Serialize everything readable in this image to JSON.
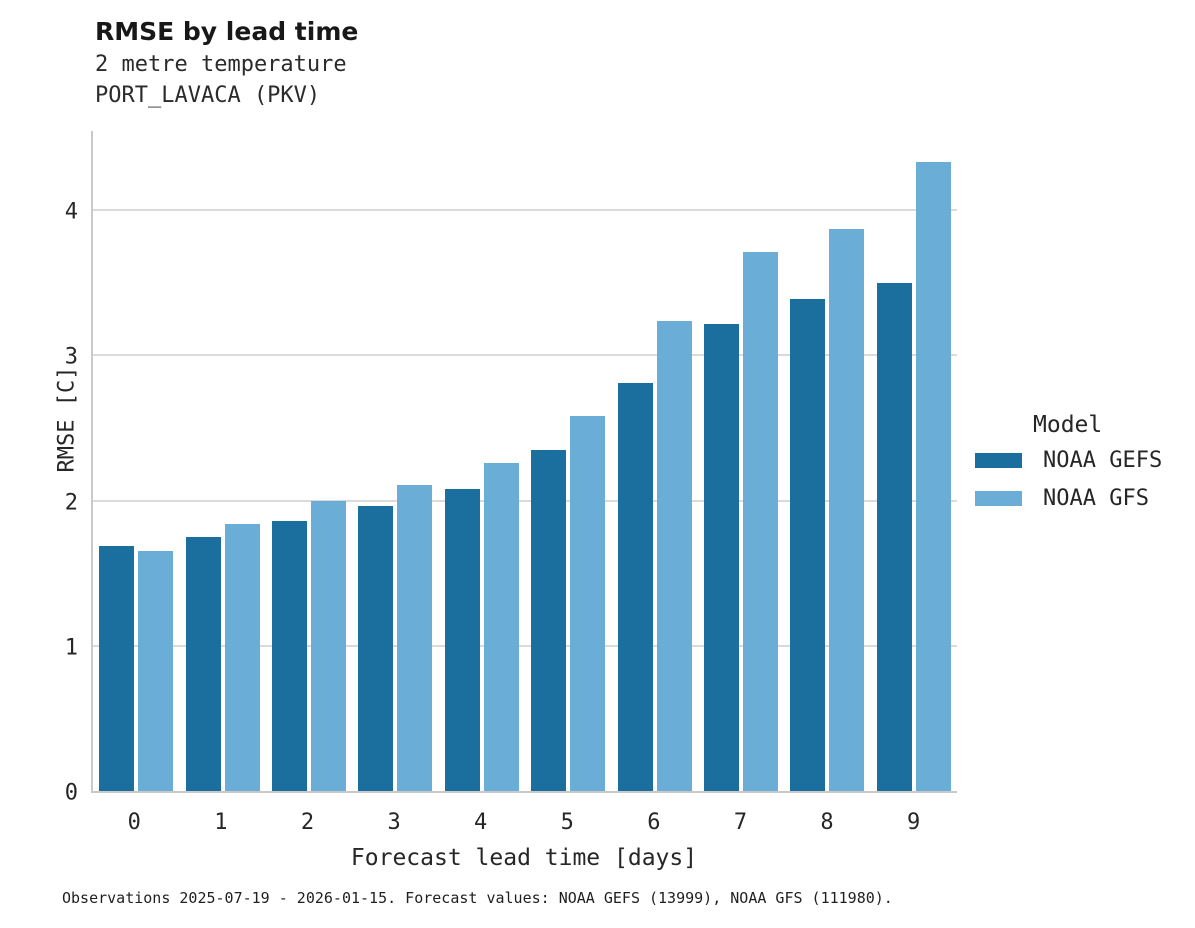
{
  "chart_data": {
    "type": "bar",
    "title": "RMSE by lead time",
    "subtitle1": "2 metre temperature",
    "subtitle2": "PORT_LAVACA (PKV)",
    "xlabel": "Forecast lead time [days]",
    "ylabel": "RMSE [C]",
    "categories": [
      "0",
      "1",
      "2",
      "3",
      "4",
      "5",
      "6",
      "7",
      "8",
      "9"
    ],
    "series": [
      {
        "name": "NOAA GEFS",
        "color": "#1b6f9e",
        "values": [
          1.69,
          1.75,
          1.86,
          1.96,
          2.08,
          2.35,
          2.81,
          3.22,
          3.39,
          3.5
        ]
      },
      {
        "name": "NOAA GFS",
        "color": "#6aaed8",
        "values": [
          1.65,
          1.84,
          2.0,
          2.11,
          2.26,
          2.58,
          3.24,
          3.71,
          3.87,
          4.33
        ]
      }
    ],
    "yticks": [
      0,
      1,
      2,
      3,
      4
    ],
    "ylim": [
      0,
      4.56
    ],
    "grid": true,
    "legend_title": "Model",
    "legend_position": "right",
    "caption": "Observations 2025-07-19 - 2026-01-15. Forecast values: NOAA GEFS (13999), NOAA GFS (111980).",
    "colors": {
      "grid": "#dadada",
      "spine": "#c9c9c9",
      "text": "#262626"
    }
  }
}
